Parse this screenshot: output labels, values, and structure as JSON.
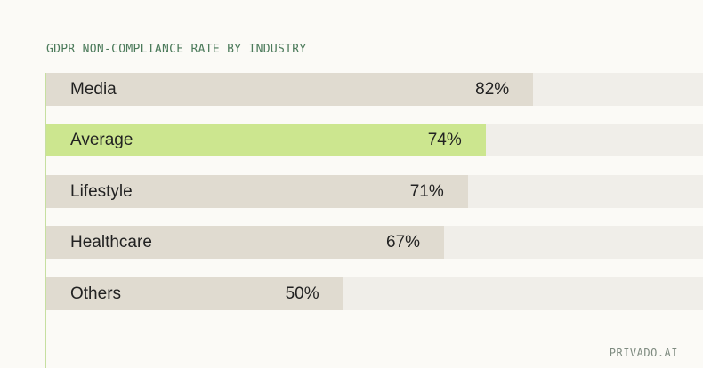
{
  "chart_data": {
    "type": "bar",
    "orientation": "horizontal",
    "title": "GDPR NON-COMPLIANCE RATE BY INDUSTRY",
    "categories": [
      "Media",
      "Average",
      "Lifestyle",
      "Healthcare",
      "Others"
    ],
    "values": [
      82,
      74,
      71,
      67,
      50
    ],
    "value_labels": [
      "82%",
      "74%",
      "71%",
      "67%",
      "50%"
    ],
    "highlight": "Average",
    "xlim": [
      0,
      100
    ],
    "grid": false,
    "colors": {
      "bar": "#e0dbd0",
      "highlight_bar": "#cce68f",
      "track": "#f0eee9",
      "axis": "#c6dfa0",
      "title": "#4b7a5a"
    }
  },
  "footer": {
    "source": "PRIVADO.AI"
  }
}
